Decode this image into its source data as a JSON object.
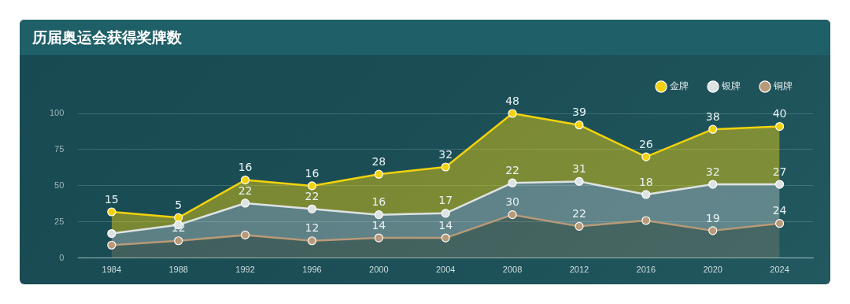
{
  "chart_data": {
    "type": "area",
    "title": "历届奥运会获得奖牌数",
    "stacked": true,
    "categories": [
      "1984",
      "1988",
      "1992",
      "1996",
      "2000",
      "2004",
      "2008",
      "2012",
      "2016",
      "2020",
      "2024"
    ],
    "series": [
      {
        "name": "铜牌",
        "color": "#b89a78",
        "values": [
          9,
          12,
          16,
          12,
          14,
          14,
          30,
          22,
          26,
          19,
          24
        ],
        "value_labels": [
          null,
          "12",
          null,
          "12",
          "14",
          "14",
          "30",
          "22",
          null,
          "19",
          "24"
        ]
      },
      {
        "name": "银牌",
        "color": "#dde3e3",
        "values": [
          8,
          11,
          22,
          22,
          16,
          17,
          22,
          31,
          18,
          32,
          27
        ],
        "value_labels": [
          null,
          null,
          "22",
          "22",
          "16",
          "17",
          "22",
          "31",
          "18",
          "32",
          "27"
        ]
      },
      {
        "name": "金牌",
        "color": "#f2d20c",
        "values": [
          15,
          5,
          16,
          16,
          28,
          32,
          48,
          39,
          26,
          38,
          40
        ],
        "value_labels": [
          "15",
          "5",
          "16",
          "16",
          "28",
          "32",
          "48",
          "39",
          "26",
          "38",
          "40"
        ]
      }
    ],
    "ylim": [
      0,
      100
    ],
    "yticks": [
      0,
      25,
      50,
      75,
      100
    ],
    "grid": "y",
    "legend": "top right",
    "marker": "circle"
  }
}
